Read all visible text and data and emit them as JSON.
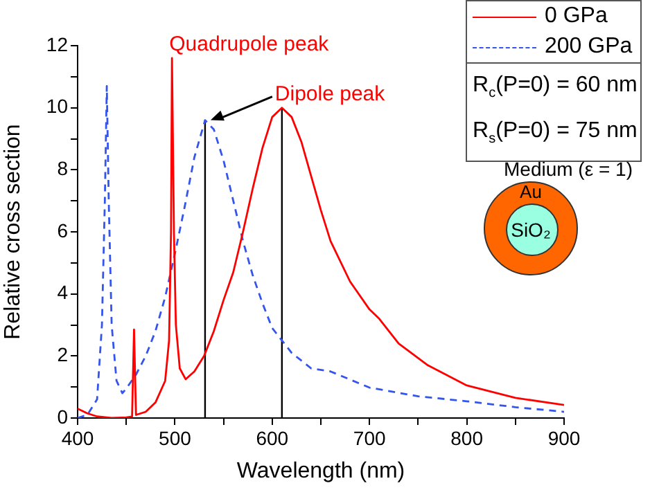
{
  "chart_data": {
    "type": "line",
    "xlabel": "Wavelength (nm)",
    "ylabel": "Relative cross section",
    "xlim": [
      400,
      900
    ],
    "ylim": [
      0,
      12
    ],
    "xticks": [
      400,
      {
        "value": 450,
        "label": null
      },
      500,
      {
        "value": 550,
        "label": null
      },
      600,
      {
        "value": 650,
        "label": null
      },
      700,
      {
        "value": 750,
        "label": null
      },
      800,
      {
        "value": 850,
        "label": null
      },
      900
    ],
    "yticks": [
      0,
      {
        "value": 1,
        "label": null
      },
      2,
      {
        "value": 3,
        "label": null
      },
      4,
      {
        "value": 5,
        "label": null
      },
      6,
      {
        "value": 7,
        "label": null
      },
      8,
      {
        "value": 9,
        "label": null
      },
      10,
      {
        "value": 11,
        "label": null
      },
      12
    ],
    "grid": false,
    "legend": "top right",
    "marker": "none",
    "series": [
      {
        "name": "0 GPa",
        "color": "#ff0000",
        "line_style": "solid",
        "x": [
          400,
          410,
          420,
          435,
          450,
          456,
          458,
          460,
          470,
          480,
          490,
          494,
          496,
          497,
          499,
          501,
          505,
          511,
          520,
          530,
          540,
          550,
          560,
          570,
          580,
          590,
          600,
          610,
          620,
          630,
          640,
          650,
          660,
          680,
          700,
          710,
          730,
          760,
          800,
          850,
          900
        ],
        "values": [
          0.3,
          0.15,
          0.05,
          0,
          0.02,
          0.05,
          2.85,
          0.1,
          0.2,
          0.5,
          1.2,
          2.5,
          6,
          11.6,
          6,
          3,
          1.6,
          1.25,
          1.5,
          2,
          2.8,
          3.8,
          4.7,
          6,
          7.4,
          8.7,
          9.7,
          10,
          9.7,
          8.9,
          7.8,
          6.7,
          5.7,
          4.4,
          3.5,
          3.2,
          2.4,
          1.7,
          1.05,
          0.65,
          0.42
        ]
      },
      {
        "name": "200 GPa",
        "color": "#3355ee",
        "line_style": "dashed",
        "x": [
          400,
          410,
          420,
          425,
          428,
          430,
          432,
          435,
          440,
          446,
          450,
          460,
          470,
          480,
          490,
          500,
          510,
          520,
          531,
          540,
          550,
          560,
          570,
          580,
          590,
          600,
          610,
          620,
          640,
          660,
          700,
          750,
          800,
          850,
          900
        ],
        "values": [
          0,
          0.1,
          0.6,
          3,
          7,
          10.7,
          7,
          3,
          1.2,
          0.8,
          0.95,
          1.4,
          2,
          2.8,
          3.9,
          5.3,
          6.8,
          8.4,
          9.6,
          9.3,
          8.3,
          7,
          5.7,
          4.6,
          3.7,
          2.9,
          2.5,
          2.1,
          1.6,
          1.5,
          0.98,
          0.7,
          0.54,
          0.35,
          0.2
        ]
      },
      {
        "color": "#000000",
        "line_style": "solid",
        "x": [
          531,
          531
        ],
        "values": [
          0,
          9.6
        ]
      },
      {
        "color": "#000000",
        "line_style": "solid",
        "x": [
          610,
          610
        ],
        "values": [
          0,
          10
        ]
      }
    ],
    "annotations": [
      {
        "text": "Quadrupole peak",
        "x": 497,
        "y": 11.6
      },
      {
        "text": "Dipole peak",
        "x": 610,
        "y": 10
      },
      "R$_{c}$(P=0) = 60 nm",
      "R$_{s}$(P=0) = 75 nm",
      "Medium (ε = 1)",
      "Au",
      "SiO₂"
    ]
  }
}
